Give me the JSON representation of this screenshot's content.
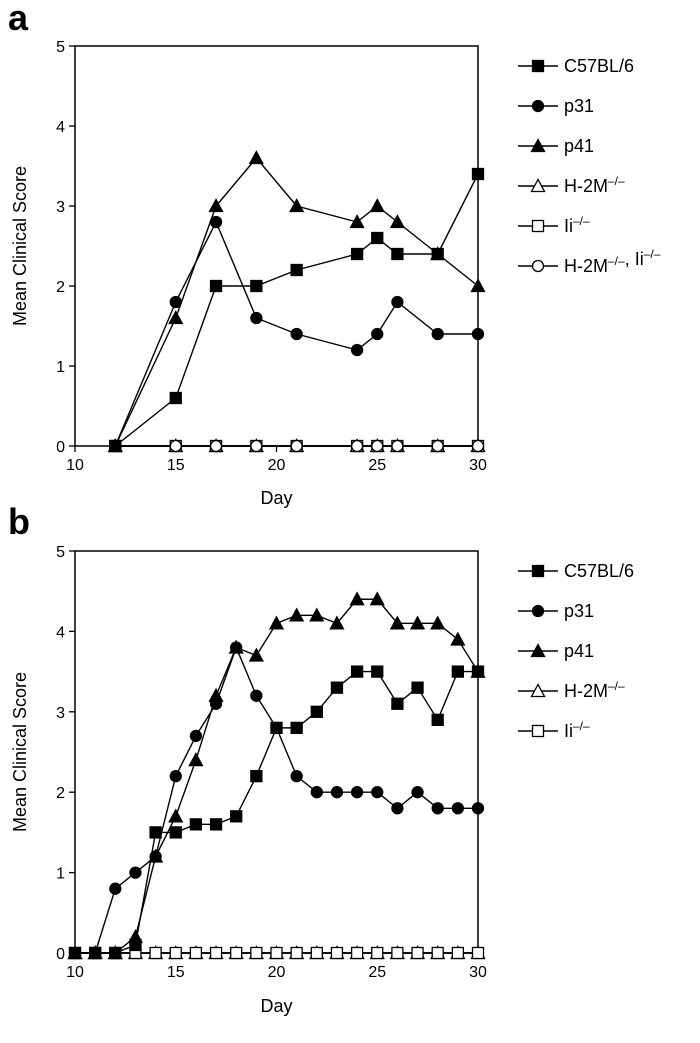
{
  "chart_data": [
    {
      "panel": "a",
      "type": "line",
      "xlabel": "Day",
      "ylabel": "Mean Clinical Score",
      "xlim": [
        10,
        30
      ],
      "ylim": [
        0,
        5
      ],
      "xticks": [
        10,
        15,
        20,
        25,
        30
      ],
      "yticks": [
        0,
        1,
        2,
        3,
        4,
        5
      ],
      "grid": false,
      "legend": "right",
      "series": [
        {
          "name": "C57BL/6",
          "marker": "square-filled",
          "points": [
            [
              12,
              0
            ],
            [
              15,
              0.6
            ],
            [
              17,
              2.0
            ],
            [
              19,
              2.0
            ],
            [
              21,
              2.2
            ],
            [
              24,
              2.4
            ],
            [
              25,
              2.6
            ],
            [
              26,
              2.4
            ],
            [
              28,
              2.4
            ],
            [
              30,
              3.4
            ]
          ]
        },
        {
          "name": "p31",
          "marker": "circle-filled",
          "points": [
            [
              12,
              0
            ],
            [
              15,
              1.8
            ],
            [
              17,
              2.8
            ],
            [
              19,
              1.6
            ],
            [
              21,
              1.4
            ],
            [
              24,
              1.2
            ],
            [
              25,
              1.4
            ],
            [
              26,
              1.8
            ],
            [
              28,
              1.4
            ],
            [
              30,
              1.4
            ]
          ]
        },
        {
          "name": "p41",
          "marker": "triangle-filled",
          "points": [
            [
              12,
              0
            ],
            [
              15,
              1.6
            ],
            [
              17,
              3.0
            ],
            [
              19,
              3.6
            ],
            [
              21,
              3.0
            ],
            [
              24,
              2.8
            ],
            [
              25,
              3.0
            ],
            [
              26,
              2.8
            ],
            [
              28,
              2.4
            ],
            [
              30,
              2.0
            ]
          ]
        },
        {
          "name": "H-2M",
          "sup": "–/–",
          "marker": "triangle-open",
          "points": [
            [
              12,
              0
            ],
            [
              15,
              0
            ],
            [
              17,
              0
            ],
            [
              19,
              0
            ],
            [
              21,
              0
            ],
            [
              24,
              0
            ],
            [
              25,
              0
            ],
            [
              26,
              0
            ],
            [
              28,
              0
            ],
            [
              30,
              0
            ]
          ]
        },
        {
          "name": "Ii",
          "sup": "–/–",
          "marker": "square-open",
          "points": [
            [
              12,
              0
            ],
            [
              15,
              0
            ],
            [
              17,
              0
            ],
            [
              19,
              0
            ],
            [
              21,
              0
            ],
            [
              24,
              0
            ],
            [
              25,
              0
            ],
            [
              26,
              0
            ],
            [
              28,
              0
            ],
            [
              30,
              0
            ]
          ]
        },
        {
          "name": "H-2M",
          "sup": "–/–",
          "name2": ", Ii",
          "sup2": "–/–",
          "marker": "circle-open",
          "points": [
            [
              12,
              0
            ],
            [
              15,
              0
            ],
            [
              17,
              0
            ],
            [
              19,
              0
            ],
            [
              21,
              0
            ],
            [
              24,
              0
            ],
            [
              25,
              0
            ],
            [
              26,
              0
            ],
            [
              28,
              0
            ],
            [
              30,
              0
            ]
          ]
        }
      ]
    },
    {
      "panel": "b",
      "type": "line",
      "xlabel": "Day",
      "ylabel": "Mean Clinical Score",
      "xlim": [
        10,
        30
      ],
      "ylim": [
        0,
        5
      ],
      "xticks": [
        10,
        15,
        20,
        25,
        30
      ],
      "yticks": [
        0,
        1,
        2,
        3,
        4,
        5
      ],
      "grid": false,
      "legend": "right",
      "series": [
        {
          "name": "C57BL/6",
          "marker": "square-filled",
          "points": [
            [
              10,
              0
            ],
            [
              11,
              0
            ],
            [
              12,
              0
            ],
            [
              13,
              0.1
            ],
            [
              14,
              1.5
            ],
            [
              15,
              1.5
            ],
            [
              16,
              1.6
            ],
            [
              17,
              1.6
            ],
            [
              18,
              1.7
            ],
            [
              19,
              2.2
            ],
            [
              20,
              2.8
            ],
            [
              21,
              2.8
            ],
            [
              22,
              3.0
            ],
            [
              23,
              3.3
            ],
            [
              24,
              3.5
            ],
            [
              25,
              3.5
            ],
            [
              26,
              3.1
            ],
            [
              27,
              3.3
            ],
            [
              28,
              2.9
            ],
            [
              29,
              3.5
            ],
            [
              30,
              3.5
            ]
          ]
        },
        {
          "name": "p31",
          "marker": "circle-filled",
          "points": [
            [
              10,
              0
            ],
            [
              11,
              0
            ],
            [
              12,
              0.8
            ],
            [
              13,
              1.0
            ],
            [
              14,
              1.2
            ],
            [
              15,
              2.2
            ],
            [
              16,
              2.7
            ],
            [
              17,
              3.1
            ],
            [
              18,
              3.8
            ],
            [
              19,
              3.2
            ],
            [
              20,
              2.8
            ],
            [
              21,
              2.2
            ],
            [
              22,
              2.0
            ],
            [
              23,
              2.0
            ],
            [
              24,
              2.0
            ],
            [
              25,
              2.0
            ],
            [
              26,
              1.8
            ],
            [
              27,
              2.0
            ],
            [
              28,
              1.8
            ],
            [
              29,
              1.8
            ],
            [
              30,
              1.8
            ]
          ]
        },
        {
          "name": "p41",
          "marker": "triangle-filled",
          "points": [
            [
              10,
              0
            ],
            [
              11,
              0
            ],
            [
              12,
              0
            ],
            [
              13,
              0.2
            ],
            [
              14,
              1.2
            ],
            [
              15,
              1.7
            ],
            [
              16,
              2.4
            ],
            [
              17,
              3.2
            ],
            [
              18,
              3.8
            ],
            [
              19,
              3.7
            ],
            [
              20,
              4.1
            ],
            [
              21,
              4.2
            ],
            [
              22,
              4.2
            ],
            [
              23,
              4.1
            ],
            [
              24,
              4.4
            ],
            [
              25,
              4.4
            ],
            [
              26,
              4.1
            ],
            [
              27,
              4.1
            ],
            [
              28,
              4.1
            ],
            [
              29,
              3.9
            ],
            [
              30,
              3.5
            ]
          ]
        },
        {
          "name": "H-2M",
          "sup": "–/–",
          "marker": "triangle-open",
          "points": [
            [
              10,
              0
            ],
            [
              11,
              0
            ],
            [
              12,
              0
            ],
            [
              13,
              0
            ],
            [
              14,
              0
            ],
            [
              15,
              0
            ],
            [
              16,
              0
            ],
            [
              17,
              0
            ],
            [
              18,
              0
            ],
            [
              19,
              0
            ],
            [
              20,
              0
            ],
            [
              21,
              0
            ],
            [
              22,
              0
            ],
            [
              23,
              0
            ],
            [
              24,
              0
            ],
            [
              25,
              0
            ],
            [
              26,
              0
            ],
            [
              27,
              0
            ],
            [
              28,
              0
            ],
            [
              29,
              0
            ],
            [
              30,
              0
            ]
          ]
        },
        {
          "name": "Ii",
          "sup": "–/–",
          "marker": "square-open",
          "points": [
            [
              10,
              0
            ],
            [
              11,
              0
            ],
            [
              12,
              0
            ],
            [
              13,
              0
            ],
            [
              14,
              0
            ],
            [
              15,
              0
            ],
            [
              16,
              0
            ],
            [
              17,
              0
            ],
            [
              18,
              0
            ],
            [
              19,
              0
            ],
            [
              20,
              0
            ],
            [
              21,
              0
            ],
            [
              22,
              0
            ],
            [
              23,
              0
            ],
            [
              24,
              0
            ],
            [
              25,
              0
            ],
            [
              26,
              0
            ],
            [
              27,
              0
            ],
            [
              28,
              0
            ],
            [
              29,
              0
            ],
            [
              30,
              0
            ]
          ]
        }
      ]
    }
  ]
}
